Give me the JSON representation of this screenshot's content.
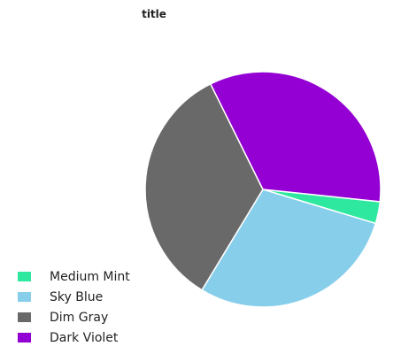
{
  "chart_data": {
    "type": "pie",
    "title": "title",
    "legend_position": "bottom-left",
    "categories": [
      "Medium Mint",
      "Sky Blue",
      "Dim Gray",
      "Dark Violet"
    ],
    "values": [
      3,
      29,
      34,
      34
    ],
    "colors": [
      "#2ee8a0",
      "#87ceeb",
      "#696969",
      "#9400d3"
    ]
  }
}
